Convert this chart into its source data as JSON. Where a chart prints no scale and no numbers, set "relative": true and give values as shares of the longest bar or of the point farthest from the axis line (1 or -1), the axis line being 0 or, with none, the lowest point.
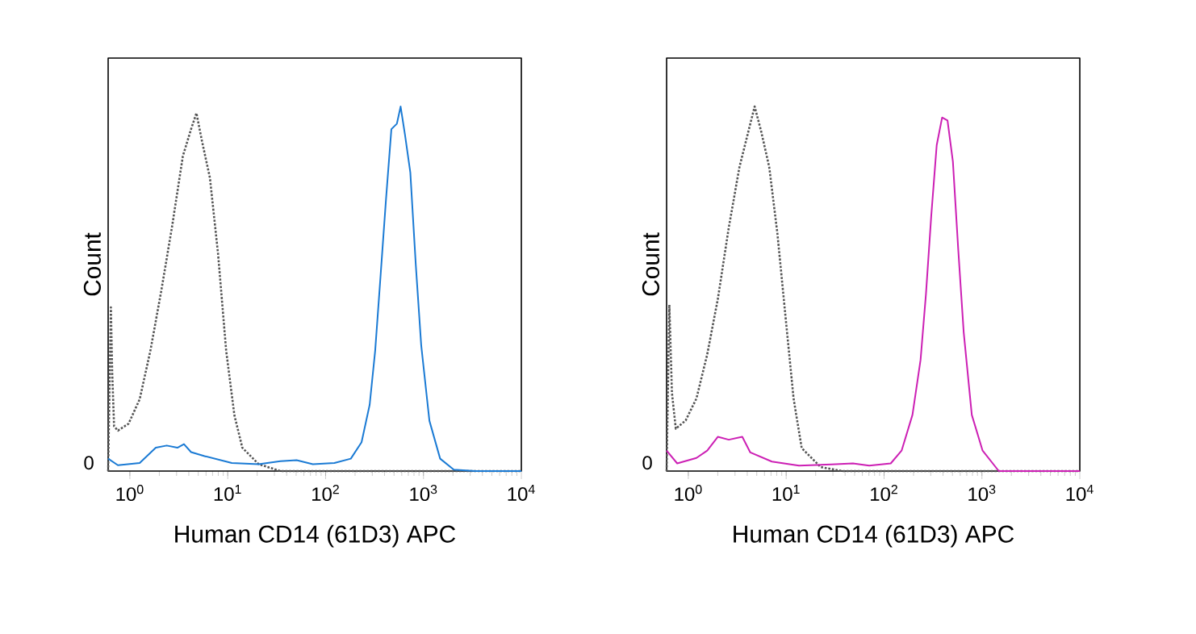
{
  "chart_data": [
    {
      "type": "line",
      "xlabel": "Human CD14 (61D3) APC",
      "ylabel": "Count",
      "log": "x",
      "relative": true,
      "marker": "none",
      "xlim": [
        0.6,
        10000
      ],
      "xticks": [
        {
          "value": 1,
          "label": "10$^{0}$"
        },
        {
          "value": 10,
          "label": "10$^{1}$"
        },
        {
          "value": 100,
          "label": "10$^{2}$"
        },
        {
          "value": 1000,
          "label": "10$^{3}$"
        },
        {
          "value": 10000,
          "label": "10$^{4}$"
        }
      ],
      "annotations": [
        "0"
      ],
      "series": [
        {
          "color": "#555555",
          "line_style": "dotted",
          "x": [
            0.6,
            0.64,
            0.66,
            0.69,
            0.755,
            0.97,
            1.26,
            1.62,
            2.09,
            2.7,
            3.48,
            4.22,
            4.79,
            5.43,
            6.58,
            7.96,
            9.64,
            11.7,
            14.1,
            20.7,
            34.5,
            10000
          ],
          "values": [
            0,
            0.449,
            0.271,
            0.123,
            0.111,
            0.13,
            0.197,
            0.33,
            0.493,
            0.671,
            0.864,
            0.938,
            0.982,
            0.908,
            0.804,
            0.597,
            0.33,
            0.153,
            0.064,
            0.019,
            0,
            0
          ]
        },
        {
          "color": "#1a7ad4",
          "line_style": "solid",
          "x": [
            0.6,
            0.755,
            1.26,
            1.84,
            2.38,
            3.06,
            3.57,
            4.22,
            5.8,
            11,
            20.7,
            34.5,
            50.6,
            74.1,
            123,
            181,
            233,
            282,
            321,
            365,
            414,
            470,
            535,
            584,
            647,
            734,
            834,
            948,
            1150,
            1480,
            2040,
            3390,
            10000
          ],
          "values": [
            0.034,
            0.016,
            0.022,
            0.064,
            0.07,
            0.064,
            0.074,
            0.052,
            0.041,
            0.022,
            0.019,
            0.027,
            0.03,
            0.019,
            0.022,
            0.034,
            0.079,
            0.182,
            0.33,
            0.538,
            0.745,
            0.938,
            0.953,
            1,
            0.923,
            0.819,
            0.567,
            0.345,
            0.138,
            0.034,
            0.004,
            0,
            0
          ]
        }
      ]
    },
    {
      "type": "line",
      "xlabel": "Human CD14 (61D3) APC",
      "ylabel": "Count",
      "log": "x",
      "relative": true,
      "marker": "none",
      "xlim": [
        0.6,
        10000
      ],
      "xticks": [
        {
          "value": 1,
          "label": "10$^{0}$"
        },
        {
          "value": 10,
          "label": "10$^{1}$"
        },
        {
          "value": 100,
          "label": "10$^{2}$"
        },
        {
          "value": 1000,
          "label": "10$^{3}$"
        },
        {
          "value": 10000,
          "label": "10$^{4}$"
        }
      ],
      "annotations": [
        "0"
      ],
      "series": [
        {
          "color": "#555555",
          "line_style": "dotted",
          "x": [
            0.6,
            0.64,
            0.68,
            0.745,
            0.94,
            1.21,
            1.56,
            2,
            2.59,
            3.33,
            4.04,
            4.76,
            5.55,
            6.71,
            8.12,
            9.82,
            11.9,
            14.4,
            22.5,
            37.3,
            10000
          ],
          "values": [
            0,
            0.456,
            0.215,
            0.116,
            0.139,
            0.199,
            0.32,
            0.471,
            0.668,
            0.834,
            0.924,
            1,
            0.932,
            0.834,
            0.653,
            0.426,
            0.199,
            0.063,
            0.011,
            0,
            0
          ]
        },
        {
          "color": "#cc1fb4",
          "line_style": "solid",
          "x": [
            0.6,
            0.77,
            1.21,
            1.56,
            2,
            2.59,
            3.56,
            4.3,
            7.14,
            13.5,
            28.9,
            48.1,
            70.5,
            117,
            151,
            195,
            236,
            268,
            303,
            345,
            392,
            445,
            505,
            573,
            651,
            788,
            1016,
            1487,
            10000
          ],
          "values": [
            0.056,
            0.021,
            0.036,
            0.056,
            0.094,
            0.086,
            0.094,
            0.051,
            0.026,
            0.015,
            0.018,
            0.021,
            0.015,
            0.021,
            0.056,
            0.154,
            0.305,
            0.486,
            0.698,
            0.894,
            0.97,
            0.962,
            0.849,
            0.607,
            0.381,
            0.154,
            0.056,
            0,
            0
          ]
        }
      ]
    }
  ]
}
